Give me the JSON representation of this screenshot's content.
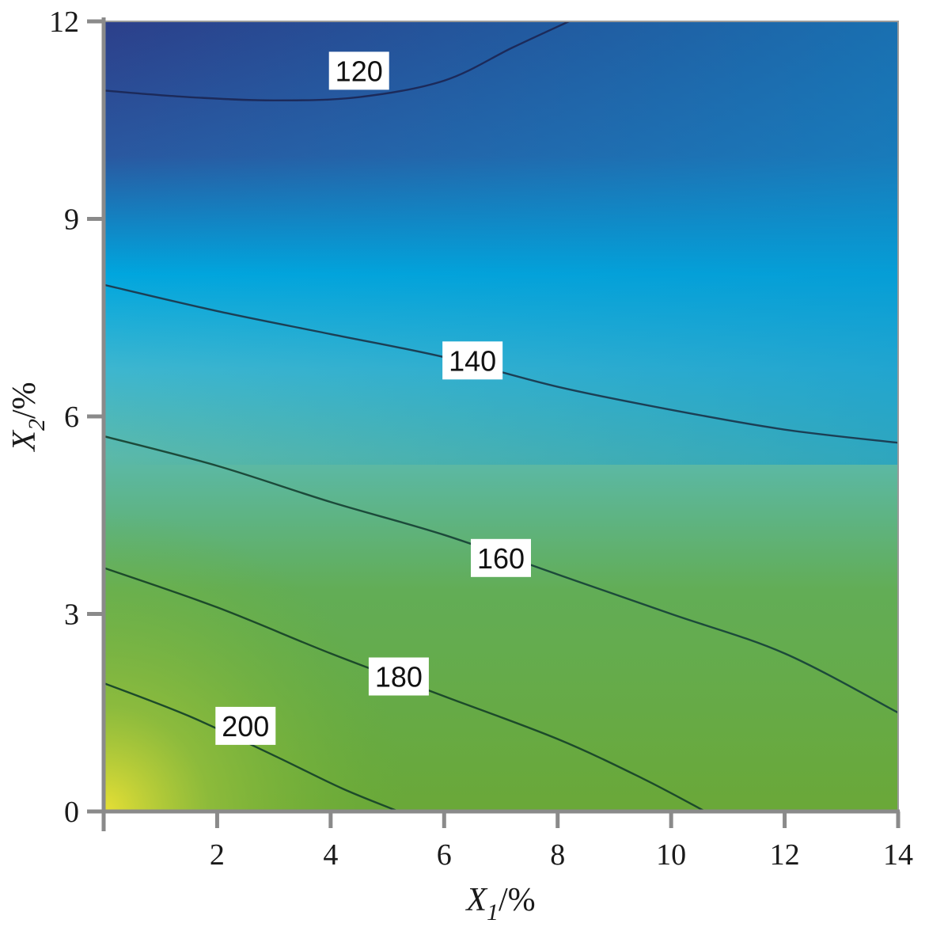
{
  "chart_data": {
    "type": "heatmap",
    "subtype": "contour",
    "xlabel": {
      "var": "X",
      "sub": "1",
      "unit": "/%"
    },
    "ylabel": {
      "var": "X",
      "sub": "2",
      "unit": "/%"
    },
    "xlim": [
      0,
      14
    ],
    "ylim": [
      0,
      12
    ],
    "xticks": [
      "2",
      "4",
      "6",
      "8",
      "10",
      "12",
      "14"
    ],
    "yticks": [
      "0",
      "3",
      "6",
      "9",
      "12"
    ],
    "colormap": [
      "#2b3d87",
      "#00a6de",
      "#56b6b4",
      "#5aaa4c",
      "#6cb035",
      "#e4dd37"
    ],
    "grid": false,
    "contours": [
      {
        "level": "120",
        "points": [
          [
            0,
            10.95
          ],
          [
            1.5,
            10.85
          ],
          [
            3,
            10.8
          ],
          [
            4.5,
            10.85
          ],
          [
            6,
            11.1
          ],
          [
            7.2,
            11.6
          ],
          [
            8.2,
            12
          ]
        ],
        "label_at": [
          4.5,
          11.25
        ]
      },
      {
        "level": "140",
        "points": [
          [
            0,
            8.0
          ],
          [
            2,
            7.6
          ],
          [
            4,
            7.25
          ],
          [
            6,
            6.9
          ],
          [
            8,
            6.45
          ],
          [
            10,
            6.1
          ],
          [
            12,
            5.8
          ],
          [
            14,
            5.6
          ]
        ],
        "label_at": [
          6.5,
          6.85
        ]
      },
      {
        "level": "160",
        "points": [
          [
            0,
            5.7
          ],
          [
            2,
            5.25
          ],
          [
            4,
            4.7
          ],
          [
            6,
            4.2
          ],
          [
            8,
            3.6
          ],
          [
            10,
            3.0
          ],
          [
            12,
            2.4
          ],
          [
            14,
            1.5
          ]
        ],
        "label_at": [
          7.0,
          3.85
        ]
      },
      {
        "level": "180",
        "points": [
          [
            0,
            3.7
          ],
          [
            2,
            3.1
          ],
          [
            4,
            2.4
          ],
          [
            6,
            1.75
          ],
          [
            8,
            1.1
          ],
          [
            9.5,
            0.5
          ],
          [
            10.6,
            0
          ]
        ],
        "label_at": [
          5.2,
          2.05
        ]
      },
      {
        "level": "200",
        "points": [
          [
            0,
            1.95
          ],
          [
            1.5,
            1.45
          ],
          [
            3,
            0.85
          ],
          [
            4.2,
            0.35
          ],
          [
            5.2,
            0
          ]
        ],
        "label_at": [
          2.5,
          1.3
        ]
      }
    ]
  }
}
